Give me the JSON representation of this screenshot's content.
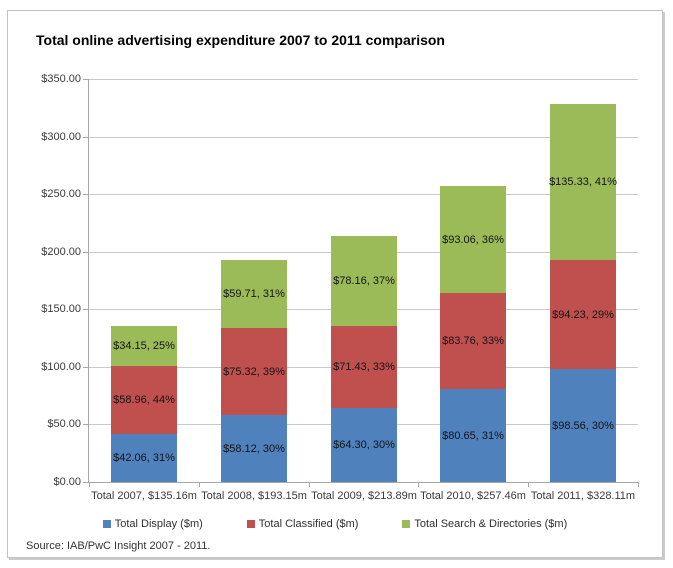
{
  "chart_data": {
    "type": "stacked-bar",
    "title": "Total online advertising expenditure 2007 to 2011 comparison",
    "categories": [
      "Total 2007, $135.16m",
      "Total 2008, $193.15m",
      "Total 2009, $213.89m",
      "Total 2010, $257.46m",
      "Total 2011, $328.11m"
    ],
    "series": [
      {
        "name": "Total Display ($m)",
        "color": "#4f81bd",
        "values": [
          42.06,
          58.12,
          64.3,
          80.65,
          98.56
        ],
        "segment_labels": [
          "$42.06, 31%",
          "$58.12, 30%",
          "$64.30, 30%",
          "$80.65, 31%",
          "$98.56, 30%"
        ]
      },
      {
        "name": "Total Classified ($m)",
        "color": "#c0504d",
        "values": [
          58.96,
          75.32,
          71.43,
          83.76,
          94.23
        ],
        "segment_labels": [
          "$58.96, 44%",
          "$75.32, 39%",
          "$71.43, 33%",
          "$83.76, 33%",
          "$94.23, 29%"
        ]
      },
      {
        "name": "Total Search & Directories ($m)",
        "color": "#9bbb59",
        "values": [
          34.15,
          59.71,
          78.16,
          93.06,
          135.33
        ],
        "segment_labels": [
          "$34.15, 25%",
          "$59.71, 31%",
          "$78.16, 37%",
          "$93.06, 36%",
          "$135.33, 41%"
        ]
      }
    ],
    "totals": [
      135.16,
      193.15,
      213.89,
      257.46,
      328.11
    ],
    "ylim": [
      0,
      350
    ],
    "ytick_step": 50,
    "ytick_labels": [
      "$0.00",
      "$50.00",
      "$100.00",
      "$150.00",
      "$200.00",
      "$250.00",
      "$300.00",
      "$350.00"
    ],
    "grid": true,
    "legend_position": "bottom"
  },
  "source_note": "Source: IAB/PwC Insight 2007 - 2011."
}
